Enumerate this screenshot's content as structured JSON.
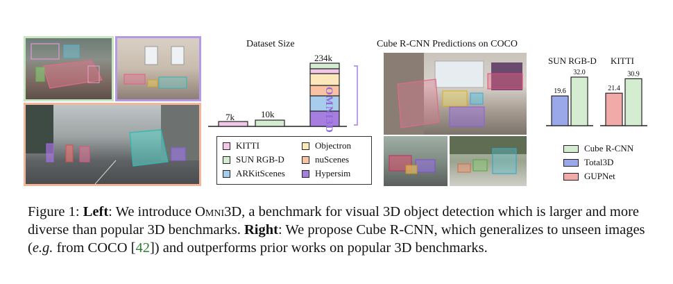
{
  "dataset_chart": {
    "title": "Dataset Size",
    "omni_label": "OMNI3D",
    "bars": [
      {
        "label": "7k",
        "value": 7,
        "color": "#f2c6e8"
      },
      {
        "label": "10k",
        "value": 10,
        "color": "#d4ecd0"
      },
      {
        "label": "234k",
        "value": 234
      }
    ],
    "stack_colors": [
      "#a57ee0",
      "#a8cceb",
      "#f9c2a4",
      "#fde8bc",
      "#f2c6e8",
      "#d4ecd0"
    ],
    "legend": [
      {
        "label": "KITTI",
        "color": "#f2c6e8"
      },
      {
        "label": "Objectron",
        "color": "#fde8bc"
      },
      {
        "label": "SUN RGB-D",
        "color": "#d4ecd0"
      },
      {
        "label": "nuScenes",
        "color": "#f9c2a4"
      },
      {
        "label": "ARKitScenes",
        "color": "#a8cceb"
      },
      {
        "label": "Hypersim",
        "color": "#a57ee0"
      }
    ]
  },
  "predictions_title": "Cube R-CNN Predictions on COCO",
  "chart_data": [
    {
      "type": "bar",
      "title": "SUN RGB-D",
      "categories": [
        "Total3D",
        "Cube R-CNN"
      ],
      "values": [
        19.6,
        32.0
      ],
      "labels": [
        "19.6",
        "32.0"
      ],
      "colors": [
        "#9aa8ea",
        "#d4ecd0"
      ]
    },
    {
      "type": "bar",
      "title": "KITTI",
      "categories": [
        "GUPNet",
        "Cube R-CNN"
      ],
      "values": [
        21.4,
        30.9
      ],
      "labels": [
        "21.4",
        "30.9"
      ],
      "colors": [
        "#f2aaa8",
        "#d4ecd0"
      ]
    }
  ],
  "method_legend": [
    {
      "label": "Cube R-CNN",
      "color": "#d4ecd0"
    },
    {
      "label": "Total3D",
      "color": "#9aa8ea"
    },
    {
      "label": "GUPNet",
      "color": "#f2aaa8"
    }
  ],
  "caption": {
    "prefix": "Figure 1: ",
    "left_label": "Left",
    "left_text_1": ": We introduce ",
    "omni": "Omni3D",
    "left_text_2": ", a benchmark for visual 3D object detection which is larger and more diverse than popular 3D benchmarks. ",
    "right_label": "Right",
    "right_text_1": ": We propose Cube R-CNN, which generalizes to unseen images (",
    "eg": "e.g.",
    "right_text_2": " from COCO [",
    "cite": "42",
    "right_text_3": "]) and outperforms prior works on popular 3D benchmarks."
  }
}
